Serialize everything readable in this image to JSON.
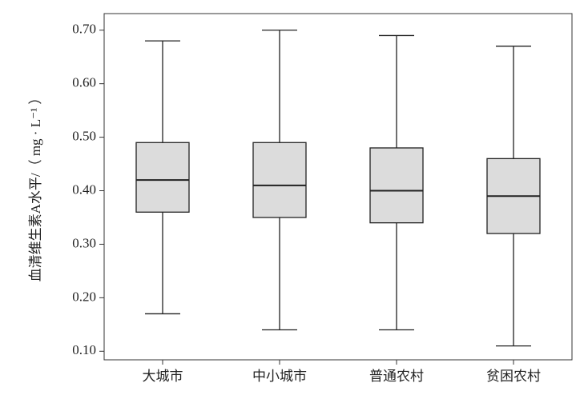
{
  "chart_data": {
    "type": "box",
    "y_label": "血清维生素A水平/（ mg · L⁻¹ ）",
    "categories": [
      "大城市",
      "中小城市",
      "普通农村",
      "贫困农村"
    ],
    "boxes": [
      {
        "min": 0.17,
        "q1": 0.36,
        "median": 0.42,
        "q3": 0.49,
        "max": 0.68
      },
      {
        "min": 0.14,
        "q1": 0.35,
        "median": 0.41,
        "q3": 0.49,
        "max": 0.7
      },
      {
        "min": 0.14,
        "q1": 0.34,
        "median": 0.4,
        "q3": 0.48,
        "max": 0.69
      },
      {
        "min": 0.11,
        "q1": 0.32,
        "median": 0.39,
        "q3": 0.46,
        "max": 0.67
      }
    ],
    "color": "#dcdcdc",
    "ylim": [
      0.084,
      0.731
    ],
    "yticks": [
      {
        "value": 0.1,
        "label": "0.10"
      },
      {
        "value": 0.2,
        "label": "0.20"
      },
      {
        "value": 0.3,
        "label": "0.30"
      },
      {
        "value": 0.4,
        "label": "0.40"
      },
      {
        "value": 0.5,
        "label": "0.50"
      },
      {
        "value": 0.6,
        "label": "0.60"
      },
      {
        "value": 0.7,
        "label": "0.70"
      }
    ]
  }
}
